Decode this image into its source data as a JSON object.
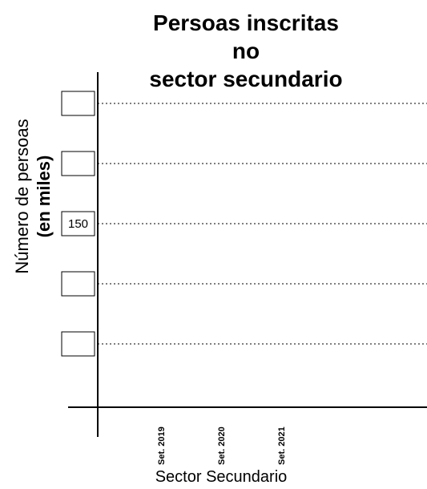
{
  "chart_data": {
    "type": "bar",
    "title_lines": [
      "Persoas inscritas",
      "no",
      "sector secundario"
    ],
    "ylabel_line1": "Número de persoas",
    "ylabel_line2": "(en miles)",
    "xlabel": "Sector Secundario",
    "categories": [
      "Set. 2019",
      "Set. 2020",
      "Set. 2021"
    ],
    "series": [
      {
        "values": [
          null,
          null,
          null
        ]
      }
    ],
    "y_ticks": [
      "",
      "",
      "150",
      "",
      ""
    ],
    "grid": true,
    "grid_style": "dotted",
    "legend": "none"
  }
}
